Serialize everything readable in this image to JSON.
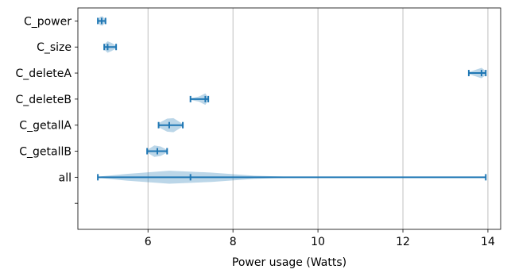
{
  "chart_data": {
    "type": "violin",
    "orientation": "horizontal",
    "title": "",
    "xlabel": "Power usage (Watts)",
    "ylabel": "",
    "xlim": [
      4.35,
      14.3
    ],
    "xticks": [
      6,
      8,
      10,
      12,
      14
    ],
    "xtick_labels": [
      "6",
      "8",
      "10",
      "12",
      "14"
    ],
    "grid": "vertical",
    "violin_color": "#1f77b4",
    "categories": [
      {
        "label": "C_power",
        "min": 4.82,
        "max": 5.0,
        "median": 4.91,
        "shape": [
          [
            4.82,
            0.05
          ],
          [
            4.87,
            0.16
          ],
          [
            4.93,
            0.18
          ],
          [
            5.0,
            0.05
          ]
        ]
      },
      {
        "label": "C_size",
        "min": 4.97,
        "max": 5.25,
        "median": 5.05,
        "shape": [
          [
            4.97,
            0.1
          ],
          [
            5.05,
            0.22
          ],
          [
            5.15,
            0.15
          ],
          [
            5.25,
            0.05
          ]
        ]
      },
      {
        "label": "C_deleteA",
        "min": 13.55,
        "max": 13.95,
        "median": 13.85,
        "shape": [
          [
            13.55,
            0.04
          ],
          [
            13.7,
            0.12
          ],
          [
            13.85,
            0.2
          ],
          [
            13.95,
            0.08
          ]
        ]
      },
      {
        "label": "C_deleteB",
        "min": 7.0,
        "max": 7.42,
        "median": 7.35,
        "shape": [
          [
            7.0,
            0.03
          ],
          [
            7.2,
            0.1
          ],
          [
            7.35,
            0.22
          ],
          [
            7.42,
            0.05
          ]
        ]
      },
      {
        "label": "C_getallA",
        "min": 6.25,
        "max": 6.82,
        "median": 6.5,
        "shape": [
          [
            6.25,
            0.08
          ],
          [
            6.45,
            0.25
          ],
          [
            6.6,
            0.27
          ],
          [
            6.82,
            0.05
          ]
        ]
      },
      {
        "label": "C_getallB",
        "min": 5.98,
        "max": 6.45,
        "median": 6.22,
        "shape": [
          [
            5.98,
            0.05
          ],
          [
            6.15,
            0.22
          ],
          [
            6.3,
            0.18
          ],
          [
            6.45,
            0.05
          ]
        ]
      },
      {
        "label": "all",
        "min": 4.82,
        "max": 13.95,
        "median": 7.0,
        "shape": [
          [
            4.82,
            0.02
          ],
          [
            5.5,
            0.13
          ],
          [
            6.5,
            0.25
          ],
          [
            7.5,
            0.18
          ],
          [
            8.5,
            0.06
          ],
          [
            9.5,
            0.01
          ],
          [
            12.0,
            0.005
          ],
          [
            13.95,
            0.005
          ]
        ]
      }
    ],
    "extra_empty_tick": ""
  }
}
